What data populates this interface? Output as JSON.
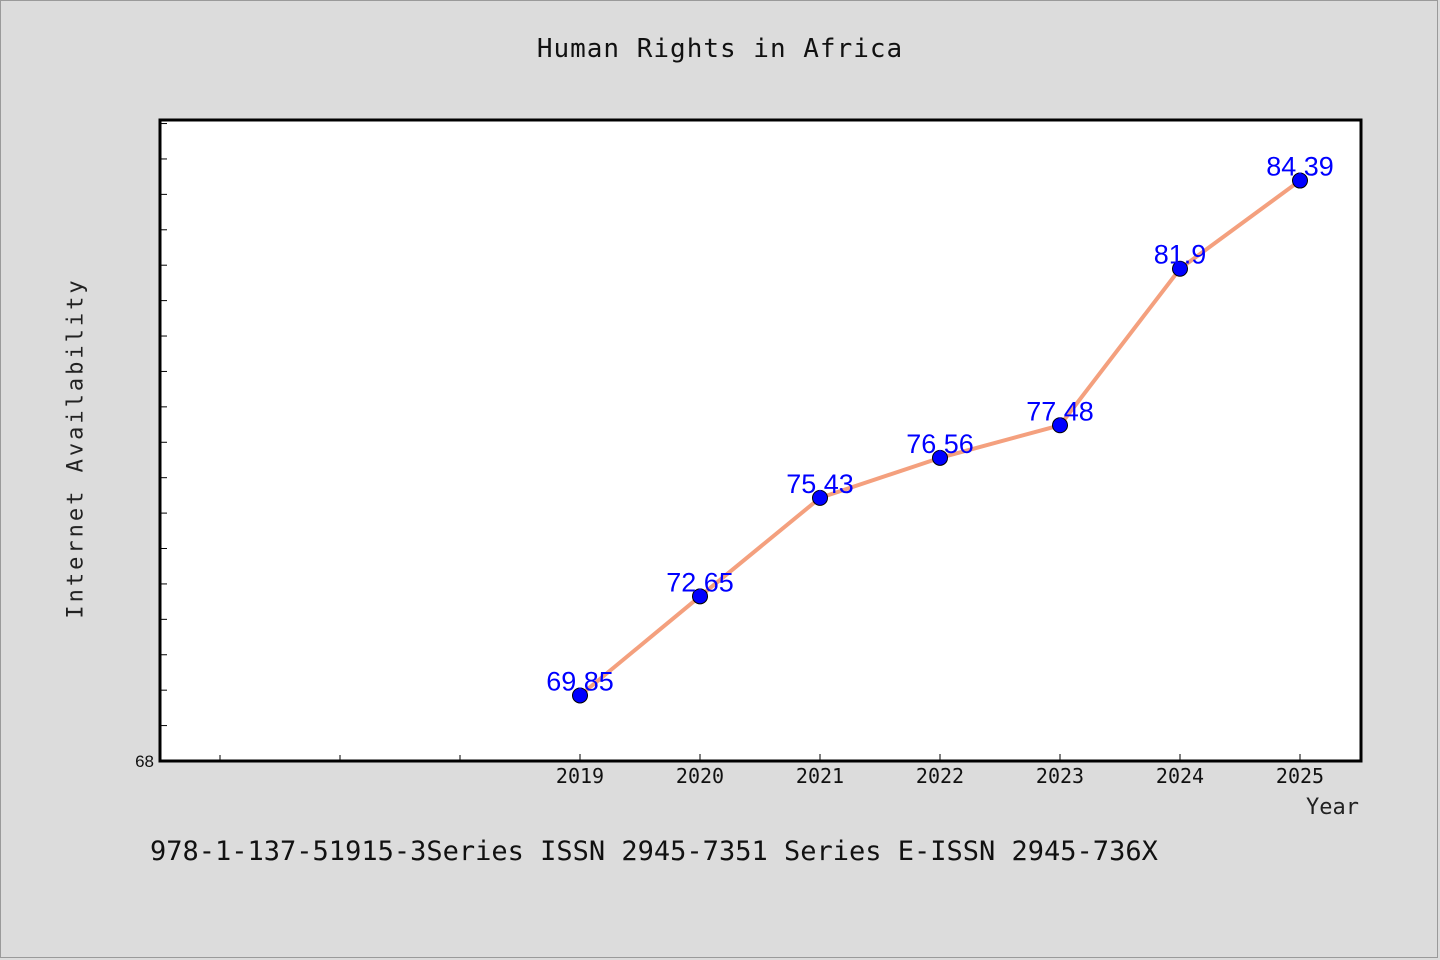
{
  "chart_data": {
    "type": "line",
    "title": "Human Rights in Africa",
    "xlabel": "Year",
    "ylabel": "Internet Availability",
    "categories": [
      "2019",
      "2020",
      "2021",
      "2022",
      "2023",
      "2024",
      "2025"
    ],
    "series": [
      {
        "values": [
          69.85,
          72.65,
          75.43,
          76.56,
          77.48,
          81.9,
          84.39
        ],
        "data_labels": [
          "69.85",
          "72.65",
          "75.43",
          "76.56",
          "77.48",
          "81.9",
          "84.39"
        ]
      }
    ],
    "y_min_label": "68",
    "ylim": [
      68,
      86.1
    ],
    "y_minor_tick_step": 1,
    "x_extra_ticks_before": 3,
    "line_color": "#f4a07e",
    "marker_color": "#0000ff",
    "label_color": "#0000ff",
    "grid": false,
    "legend": "none"
  },
  "footer": "978-1-137-51915-3Series ISSN 2945-7351 Series E-ISSN 2945-736X"
}
